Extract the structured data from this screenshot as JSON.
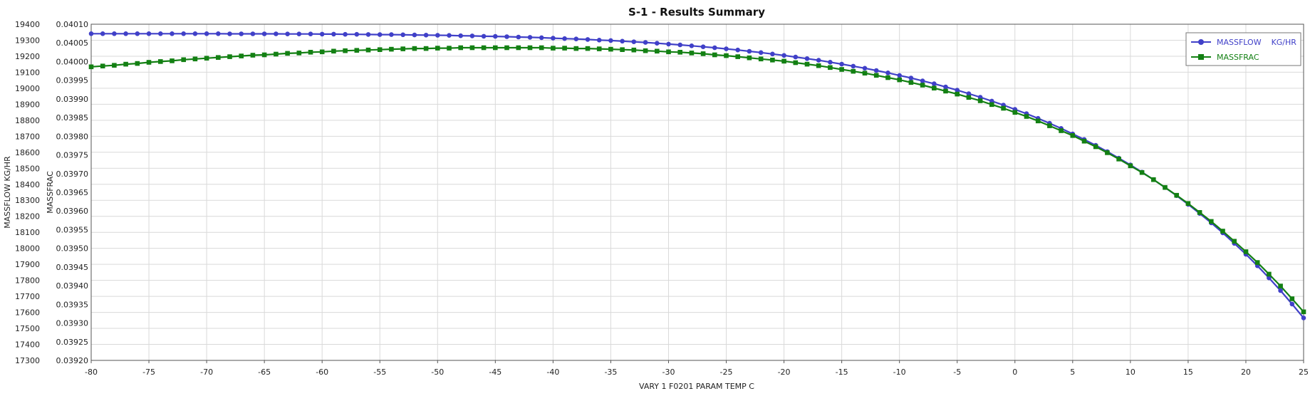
{
  "chart_data": {
    "type": "line",
    "title": "S-1 - Results Summary",
    "xlabel": "VARY   1 F0201    PARAM    TEMP  C",
    "ylabel_left": "MASSFLOW    KG/HR",
    "ylabel_right": "MASSFRAC",
    "xlim": [
      -80,
      25
    ],
    "ylim_left": [
      17300,
      19400
    ],
    "ylim_right": [
      0.0392,
      0.0401
    ],
    "xticks": [
      "-80",
      "-75",
      "-70",
      "-65",
      "-60",
      "-55",
      "-50",
      "-45",
      "-40",
      "-35",
      "-30",
      "-25",
      "-20",
      "-15",
      "-10",
      "-5",
      "0",
      "5",
      "10",
      "15",
      "20",
      "25"
    ],
    "yticks_left": [
      "17300",
      "17400",
      "17500",
      "17600",
      "17700",
      "17800",
      "17900",
      "18000",
      "18100",
      "18200",
      "18300",
      "18400",
      "18500",
      "18600",
      "18700",
      "18800",
      "18900",
      "19000",
      "19100",
      "19200",
      "19300",
      "19400"
    ],
    "yticks_right": [
      "0.03920",
      "0.03925",
      "0.03930",
      "0.03935",
      "0.03940",
      "0.03945",
      "0.03950",
      "0.03955",
      "0.03960",
      "0.03965",
      "0.03970",
      "0.03975",
      "0.03980",
      "0.03985",
      "0.03990",
      "0.03995",
      "0.04000",
      "0.04005",
      "0.04010"
    ],
    "grid": true,
    "legend_position": "top-right",
    "x": [
      -80,
      -79,
      -78,
      -77,
      -76,
      -75,
      -74,
      -73,
      -72,
      -71,
      -70,
      -69,
      -68,
      -67,
      -66,
      -65,
      -64,
      -63,
      -62,
      -61,
      -60,
      -59,
      -58,
      -57,
      -56,
      -55,
      -54,
      -53,
      -52,
      -51,
      -50,
      -49,
      -48,
      -47,
      -46,
      -45,
      -44,
      -43,
      -42,
      -41,
      -40,
      -39,
      -38,
      -37,
      -36,
      -35,
      -34,
      -33,
      -32,
      -31,
      -30,
      -29,
      -28,
      -27,
      -26,
      -25,
      -24,
      -23,
      -22,
      -21,
      -20,
      -19,
      -18,
      -17,
      -16,
      -15,
      -14,
      -13,
      -12,
      -11,
      -10,
      -9,
      -8,
      -7,
      -6,
      -5,
      -4,
      -3,
      -2,
      -1,
      0,
      1,
      2,
      3,
      4,
      5,
      6,
      7,
      8,
      9,
      10,
      11,
      12,
      13,
      14,
      15,
      16,
      17,
      18,
      19,
      20,
      21,
      22,
      23,
      24,
      25
    ],
    "series": [
      {
        "name": "MASSFLOW    KG/HR",
        "axis": "left",
        "color": "#4040c8",
        "marker": "circle",
        "values": [
          19341,
          19341,
          19341,
          19341,
          19341,
          19341,
          19341,
          19341,
          19341,
          19341,
          19341,
          19341,
          19340,
          19340,
          19340,
          19340,
          19340,
          19339,
          19339,
          19339,
          19338,
          19338,
          19337,
          19337,
          19336,
          19335,
          19335,
          19334,
          19333,
          19332,
          19331,
          19330,
          19328,
          19327,
          19325,
          19324,
          19322,
          19320,
          19318,
          19316,
          19313,
          19310,
          19308,
          19305,
          19301,
          19298,
          19294,
          19290,
          19286,
          19281,
          19276,
          19271,
          19265,
          19259,
          19253,
          19246,
          19239,
          19231,
          19223,
          19214,
          19205,
          19195,
          19185,
          19175,
          19163,
          19151,
          19138,
          19125,
          19111,
          19096,
          19080,
          19064,
          19046,
          19028,
          19008,
          18988,
          18966,
          18944,
          18920,
          18895,
          18868,
          18841,
          18812,
          18781,
          18749,
          18715,
          18680,
          18643,
          18604,
          18563,
          18521,
          18476,
          18429,
          18380,
          18329,
          18275,
          18218,
          18159,
          18097,
          18031,
          17963,
          17891,
          17815,
          17736,
          17652,
          17565
        ]
      },
      {
        "name": "MASSFRAC",
        "axis": "right",
        "color": "#138013",
        "marker": "square",
        "values": [
          0.039986,
          0.039988,
          0.03999,
          0.039993,
          0.039995,
          0.039998,
          0.04,
          0.040002,
          0.040005,
          0.040007,
          0.040009,
          0.040011,
          0.040013,
          0.040015,
          0.040017,
          0.040018,
          0.04002,
          0.040022,
          0.040023,
          0.040025,
          0.040026,
          0.040028,
          0.040029,
          0.04003,
          0.040031,
          0.040032,
          0.040033,
          0.040034,
          0.040035,
          0.040035,
          0.040036,
          0.040036,
          0.040037,
          0.040037,
          0.040037,
          0.040037,
          0.040037,
          0.040037,
          0.040037,
          0.040037,
          0.040036,
          0.040036,
          0.040035,
          0.040035,
          0.040034,
          0.040033,
          0.040032,
          0.040031,
          0.040029,
          0.040028,
          0.040026,
          0.040025,
          0.040023,
          0.040021,
          0.040018,
          0.040016,
          0.040013,
          0.04001,
          0.040007,
          0.040004,
          0.040001,
          0.039997,
          0.039993,
          0.039989,
          0.039984,
          0.039979,
          0.039974,
          0.039969,
          0.039963,
          0.039957,
          0.039951,
          0.039944,
          0.039937,
          0.039929,
          0.039921,
          0.039913,
          0.039904,
          0.039895,
          0.039885,
          0.039875,
          0.039864,
          0.039853,
          0.039841,
          0.039828,
          0.039815,
          0.039802,
          0.039787,
          0.039772,
          0.039756,
          0.039739,
          0.039721,
          0.039703,
          0.039684,
          0.039663,
          0.039642,
          0.03962,
          0.039596,
          0.039572,
          0.039546,
          0.039519,
          0.039491,
          0.039462,
          0.039431,
          0.039399,
          0.039365,
          0.03933
        ]
      }
    ]
  }
}
